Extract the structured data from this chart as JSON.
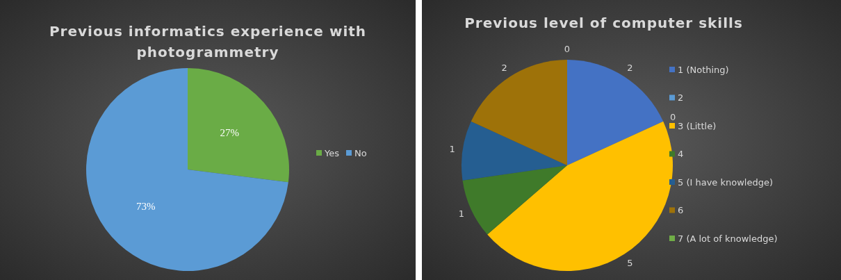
{
  "chart_data": [
    {
      "type": "pie",
      "title": "Previous informatics experience with photogrammetry",
      "categories": [
        "Yes",
        "No"
      ],
      "values": [
        27,
        73
      ],
      "colors": [
        "#6aac46",
        "#5b9bd5"
      ],
      "value_labels": [
        "27%",
        "73%"
      ],
      "legend": "right"
    },
    {
      "type": "pie",
      "title": "Previous level of computer skills",
      "categories": [
        "1 (Nothing)",
        "2",
        "3 (Little)",
        "4",
        "5 (I have knowledge)",
        "6",
        "7 (A lot of knowledge)"
      ],
      "values": [
        2,
        0,
        5,
        1,
        1,
        2,
        0
      ],
      "colors": [
        "#4472c4",
        "#5b9bd5",
        "#ffc000",
        "#3f7a2a",
        "#255e91",
        "#9e7209",
        "#70ad47"
      ],
      "value_labels": [
        "2",
        "0",
        "5",
        "1",
        "1",
        "2",
        "0"
      ],
      "legend": "right"
    }
  ]
}
